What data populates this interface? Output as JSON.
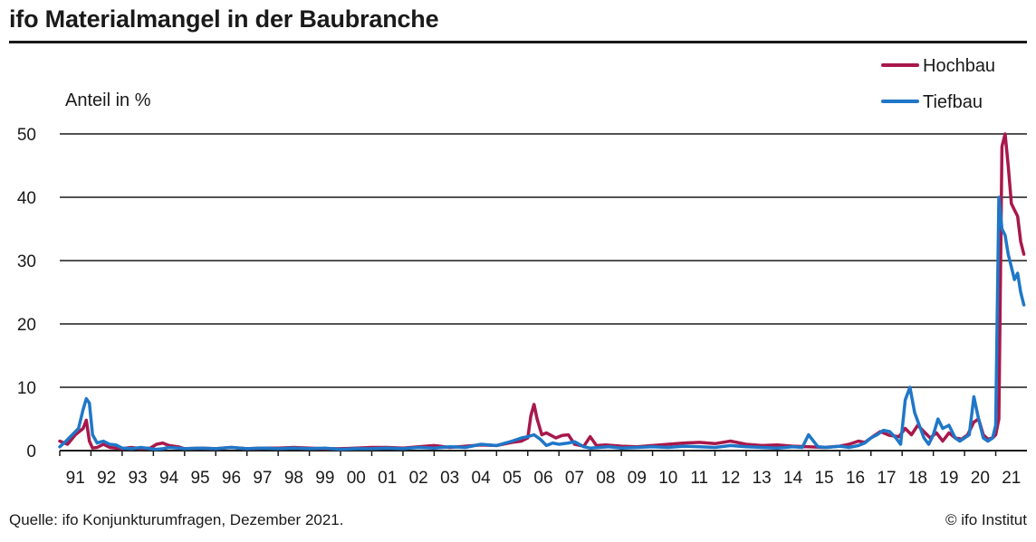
{
  "title": "ifo Materialmangel in der Baubranche",
  "source": "Quelle: ifo Konjunkturumfragen, Dezember 2021.",
  "copyright": "© ifo Institut",
  "colors": {
    "hochbau": "#a8184b",
    "tiefbau": "#1f77c8",
    "grid": "#1a1a1a"
  },
  "chart_data": {
    "type": "line",
    "ylabel": "Anteil in %",
    "ylim": [
      0,
      50
    ],
    "yticks": [
      0,
      10,
      20,
      30,
      40,
      50
    ],
    "xlim": [
      1991,
      2022
    ],
    "xticks": [
      "91",
      "92",
      "93",
      "94",
      "95",
      "96",
      "97",
      "98",
      "99",
      "00",
      "01",
      "02",
      "03",
      "04",
      "05",
      "06",
      "07",
      "08",
      "09",
      "10",
      "11",
      "12",
      "13",
      "14",
      "15",
      "16",
      "17",
      "18",
      "19",
      "20",
      "21"
    ],
    "legend_position": "top-right",
    "grid": "horizontal",
    "series": [
      {
        "name": "Hochbau",
        "color": "#a8184b",
        "x": [
          1991.0,
          1991.25,
          1991.5,
          1991.75,
          1991.85,
          1991.95,
          1992.05,
          1992.2,
          1992.4,
          1992.6,
          1992.8,
          1993.0,
          1993.3,
          1993.6,
          1993.9,
          1994.1,
          1994.3,
          1994.5,
          1994.8,
          1995.0,
          1995.5,
          1996.0,
          1996.5,
          1997.0,
          1997.5,
          1998.0,
          1998.5,
          1999.0,
          1999.5,
          2000.0,
          2000.5,
          2001.0,
          2001.5,
          2002.0,
          2002.5,
          2003.0,
          2003.5,
          2004.0,
          2004.5,
          2005.0,
          2005.5,
          2005.8,
          2006.0,
          2006.1,
          2006.2,
          2006.3,
          2006.45,
          2006.6,
          2006.75,
          2006.9,
          2007.1,
          2007.3,
          2007.5,
          2007.8,
          2008.0,
          2008.2,
          2008.5,
          2009.0,
          2009.5,
          2010.0,
          2010.5,
          2011.0,
          2011.5,
          2012.0,
          2012.5,
          2013.0,
          2013.5,
          2014.0,
          2014.5,
          2015.0,
          2015.5,
          2016.0,
          2016.3,
          2016.6,
          2016.8,
          2017.0,
          2017.3,
          2017.6,
          2017.9,
          2018.1,
          2018.3,
          2018.5,
          2018.7,
          2018.9,
          2019.1,
          2019.3,
          2019.5,
          2019.7,
          2019.9,
          2020.1,
          2020.3,
          2020.45,
          2020.6,
          2020.75,
          2020.9,
          2021.0,
          2021.1,
          2021.2,
          2021.3,
          2021.4,
          2021.5,
          2021.6,
          2021.7,
          2021.8,
          2021.9
        ],
        "values": [
          1.5,
          1.0,
          2.5,
          3.5,
          4.8,
          1.5,
          0.4,
          0.5,
          1.0,
          0.5,
          0.4,
          0.3,
          0.5,
          0.3,
          0.4,
          1.0,
          1.2,
          0.8,
          0.6,
          0.3,
          0.4,
          0.3,
          0.5,
          0.3,
          0.4,
          0.4,
          0.5,
          0.4,
          0.3,
          0.3,
          0.4,
          0.5,
          0.5,
          0.4,
          0.6,
          0.8,
          0.5,
          0.7,
          0.9,
          0.8,
          1.3,
          1.5,
          2.0,
          5.5,
          7.3,
          5.0,
          2.5,
          2.8,
          2.4,
          2.0,
          2.4,
          2.5,
          1.0,
          0.7,
          2.2,
          0.8,
          0.9,
          0.7,
          0.6,
          0.8,
          1.0,
          1.2,
          1.3,
          1.1,
          1.5,
          1.0,
          0.8,
          0.9,
          0.7,
          0.6,
          0.5,
          0.7,
          1.0,
          1.5,
          1.3,
          2.0,
          3.0,
          2.4,
          2.2,
          3.5,
          2.5,
          4.0,
          3.0,
          2.0,
          2.8,
          1.5,
          2.8,
          2.0,
          1.8,
          2.5,
          4.5,
          5.0,
          2.5,
          1.8,
          2.0,
          2.5,
          5.0,
          48.0,
          50.0,
          45.0,
          39.0,
          38.0,
          37.0,
          33.0,
          31.0
        ]
      },
      {
        "name": "Tiefbau",
        "color": "#1f77c8",
        "x": [
          1991.0,
          1991.2,
          1991.4,
          1991.6,
          1991.75,
          1991.85,
          1991.95,
          1992.05,
          1992.2,
          1992.4,
          1992.6,
          1992.8,
          1993.0,
          1993.3,
          1993.6,
          1993.9,
          1994.1,
          1994.3,
          1994.5,
          1994.8,
          1995.0,
          1995.5,
          1996.0,
          1996.5,
          1997.0,
          1997.5,
          1998.0,
          1998.5,
          1999.0,
          1999.5,
          2000.0,
          2000.5,
          2001.0,
          2001.5,
          2002.0,
          2002.5,
          2003.0,
          2003.5,
          2004.0,
          2004.5,
          2005.0,
          2005.5,
          2005.8,
          2006.0,
          2006.2,
          2006.4,
          2006.6,
          2006.8,
          2007.0,
          2007.3,
          2007.5,
          2007.8,
          2008.0,
          2008.3,
          2008.6,
          2009.0,
          2009.5,
          2010.0,
          2010.5,
          2011.0,
          2011.5,
          2012.0,
          2012.5,
          2013.0,
          2013.5,
          2014.0,
          2014.5,
          2014.8,
          2015.0,
          2015.3,
          2015.6,
          2016.0,
          2016.3,
          2016.6,
          2016.8,
          2017.0,
          2017.2,
          2017.4,
          2017.6,
          2017.8,
          2017.95,
          2018.1,
          2018.25,
          2018.4,
          2018.55,
          2018.7,
          2018.85,
          2019.0,
          2019.15,
          2019.3,
          2019.5,
          2019.7,
          2019.85,
          2020.0,
          2020.15,
          2020.3,
          2020.45,
          2020.6,
          2020.75,
          2020.9,
          2021.0,
          2021.1,
          2021.2,
          2021.3,
          2021.4,
          2021.5,
          2021.6,
          2021.7,
          2021.8,
          2021.9
        ],
        "values": [
          0.6,
          1.5,
          2.5,
          3.5,
          6.5,
          8.2,
          7.5,
          2.5,
          1.2,
          1.5,
          1.0,
          0.9,
          0.4,
          0.3,
          0.5,
          0.3,
          0.2,
          0.3,
          0.5,
          0.4,
          0.3,
          0.4,
          0.3,
          0.5,
          0.3,
          0.4,
          0.3,
          0.4,
          0.3,
          0.4,
          0.2,
          0.3,
          0.3,
          0.4,
          0.3,
          0.5,
          0.4,
          0.6,
          0.5,
          1.0,
          0.8,
          1.5,
          2.0,
          2.2,
          2.5,
          1.8,
          0.8,
          1.2,
          1.0,
          1.2,
          1.4,
          0.6,
          0.4,
          0.5,
          0.6,
          0.4,
          0.5,
          0.6,
          0.5,
          0.7,
          0.6,
          0.5,
          0.8,
          0.6,
          0.5,
          0.4,
          0.6,
          0.5,
          2.5,
          0.6,
          0.5,
          0.7,
          0.5,
          0.8,
          1.2,
          2.0,
          2.5,
          3.2,
          3.0,
          2.0,
          1.0,
          8.0,
          10.0,
          6.0,
          4.0,
          2.0,
          1.0,
          2.5,
          5.0,
          3.5,
          4.0,
          2.0,
          1.5,
          2.0,
          2.5,
          8.5,
          5.0,
          2.0,
          1.5,
          2.0,
          4.0,
          40.0,
          35.0,
          34.0,
          31.0,
          29.0,
          27.0,
          28.0,
          25.0,
          23.0
        ]
      }
    ]
  }
}
